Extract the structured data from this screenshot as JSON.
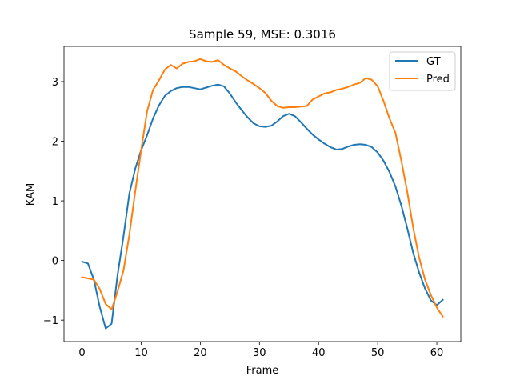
{
  "chart_data": {
    "type": "line",
    "title": "Sample 59, MSE: 0.3016",
    "xlabel": "Frame",
    "ylabel": "KAM",
    "xlim": [
      -3.05,
      64.05
    ],
    "ylim": [
      -1.36,
      3.59
    ],
    "xticks": [
      0,
      10,
      20,
      30,
      40,
      50,
      60
    ],
    "yticks": [
      -1,
      0,
      1,
      2,
      3
    ],
    "grid": false,
    "legend": "top-right",
    "x": [
      0,
      1,
      2,
      3,
      4,
      5,
      6,
      7,
      8,
      9,
      10,
      11,
      12,
      13,
      14,
      15,
      16,
      17,
      18,
      19,
      20,
      21,
      22,
      23,
      24,
      25,
      26,
      27,
      28,
      29,
      30,
      31,
      32,
      33,
      34,
      35,
      36,
      37,
      38,
      39,
      40,
      41,
      42,
      43,
      44,
      45,
      46,
      47,
      48,
      49,
      50,
      51,
      52,
      53,
      54,
      55,
      56,
      57,
      58,
      59,
      60,
      61
    ],
    "series": [
      {
        "name": "GT",
        "color": "#1f77b4",
        "values": [
          -0.02,
          -0.05,
          -0.32,
          -0.78,
          -1.14,
          -1.06,
          -0.25,
          0.4,
          1.12,
          1.54,
          1.85,
          2.1,
          2.38,
          2.6,
          2.76,
          2.84,
          2.89,
          2.91,
          2.91,
          2.89,
          2.87,
          2.9,
          2.93,
          2.95,
          2.92,
          2.8,
          2.65,
          2.52,
          2.4,
          2.3,
          2.25,
          2.24,
          2.26,
          2.33,
          2.42,
          2.46,
          2.42,
          2.32,
          2.21,
          2.11,
          2.03,
          1.96,
          1.9,
          1.86,
          1.87,
          1.91,
          1.94,
          1.95,
          1.94,
          1.9,
          1.81,
          1.67,
          1.48,
          1.24,
          0.92,
          0.54,
          0.13,
          -0.2,
          -0.47,
          -0.67,
          -0.75,
          -0.66
        ]
      },
      {
        "name": "Pred",
        "color": "#ff7f0e",
        "values": [
          -0.28,
          -0.3,
          -0.32,
          -0.48,
          -0.73,
          -0.82,
          -0.52,
          -0.17,
          0.43,
          1.16,
          1.85,
          2.5,
          2.86,
          3.02,
          3.2,
          3.28,
          3.22,
          3.3,
          3.33,
          3.34,
          3.38,
          3.34,
          3.33,
          3.36,
          3.28,
          3.22,
          3.17,
          3.09,
          3.02,
          2.96,
          2.89,
          2.81,
          2.68,
          2.59,
          2.56,
          2.57,
          2.57,
          2.58,
          2.59,
          2.7,
          2.75,
          2.8,
          2.82,
          2.86,
          2.88,
          2.91,
          2.95,
          2.98,
          3.06,
          3.03,
          2.92,
          2.67,
          2.38,
          2.14,
          1.67,
          1.15,
          0.55,
          0.05,
          -0.32,
          -0.58,
          -0.79,
          -0.94
        ]
      }
    ]
  }
}
